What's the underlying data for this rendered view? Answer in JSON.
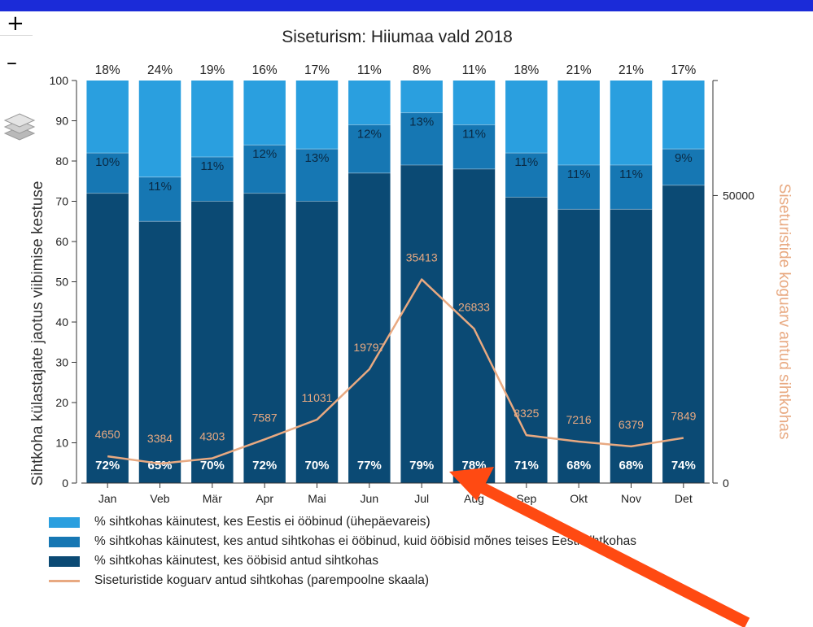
{
  "zoom": {
    "in_label": "+",
    "out_label": "–"
  },
  "chart_data": {
    "type": "bar",
    "title": "Siseturism: Hiiumaa vald 2018",
    "ylabel": "Sihtkoha külastajate jaotus viibimise kestuse",
    "y2label": "Siseturistide koguarv antud sihtkohas",
    "ylim": [
      0,
      100
    ],
    "y2lim": [
      0,
      70000
    ],
    "yticks": [
      "0",
      "10",
      "20",
      "30",
      "40",
      "50",
      "60",
      "70",
      "80",
      "90",
      "100"
    ],
    "y2ticks": [
      {
        "value": 0,
        "label": "0"
      },
      {
        "value": 50000,
        "label": "50000"
      }
    ],
    "categories": [
      "Jan",
      "Veb",
      "Mär",
      "Apr",
      "Mai",
      "Jun",
      "Jul",
      "Aug",
      "Sep",
      "Okt",
      "Nov",
      "Det"
    ],
    "stacked": true,
    "series": [
      {
        "name": "% sihtkohas käinutest, kes ööbisid antud sihtkohas",
        "color": "#0b4a74",
        "values": [
          72,
          65,
          70,
          72,
          70,
          77,
          79,
          78,
          71,
          68,
          68,
          74
        ],
        "labels": [
          "72%",
          "65%",
          "70%",
          "72%",
          "70%",
          "77%",
          "79%",
          "78%",
          "71%",
          "68%",
          "68%",
          "74%"
        ]
      },
      {
        "name": "% sihtkohas käinutest, kes antud sihtkohas ei ööbinud, kuid ööbisid mõnes teises Eesti sihtkohas",
        "color": "#1677b3",
        "values": [
          10,
          11,
          11,
          12,
          13,
          12,
          13,
          11,
          11,
          11,
          11,
          9
        ],
        "labels": [
          "10%",
          "11%",
          "11%",
          "12%",
          "13%",
          "12%",
          "13%",
          "11%",
          "11%",
          "11%",
          "11%",
          "9%"
        ]
      },
      {
        "name": "% sihtkohas käinutest, kes Eestis ei ööbinud (ühepäevareis)",
        "color": "#2a9fdf",
        "values": [
          18,
          24,
          19,
          16,
          17,
          11,
          8,
          11,
          18,
          21,
          21,
          17
        ],
        "labels": [
          "18%",
          "24%",
          "19%",
          "16%",
          "17%",
          "11%",
          "8%",
          "11%",
          "18%",
          "21%",
          "21%",
          "17%"
        ]
      },
      {
        "name": "Siseturistide koguarv antud sihtkohas (parempoolne skaala)",
        "type": "line",
        "axis": "right",
        "color": "#e8a981",
        "values": [
          4650,
          3384,
          4303,
          7587,
          11031,
          19797,
          35413,
          26833,
          8325,
          7216,
          6379,
          7849
        ],
        "labels": [
          "4650",
          "3384",
          "4303",
          "7587",
          "11031",
          "19797",
          "35413",
          "26833",
          "8325",
          "7216",
          "6379",
          "7849"
        ]
      }
    ]
  },
  "legend": [
    {
      "label": "% sihtkohas käinutest, kes Eestis ei ööbinud (ühepäevareis)",
      "color": "#2a9fdf",
      "kind": "box"
    },
    {
      "label": "% sihtkohas käinutest, kes antud sihtkohas ei ööbinud, kuid ööbisid mõnes teises Eesti sihtkohas",
      "color": "#1677b3",
      "kind": "box"
    },
    {
      "label": "% sihtkohas käinutest, kes ööbisid antud sihtkohas",
      "color": "#0b4a74",
      "kind": "box"
    },
    {
      "label": "Siseturistide koguarv antud sihtkohas (parempoolne skaala)",
      "color": "#e8a981",
      "kind": "line"
    }
  ],
  "annotation": {
    "arrow_color": "#ff4a12"
  }
}
